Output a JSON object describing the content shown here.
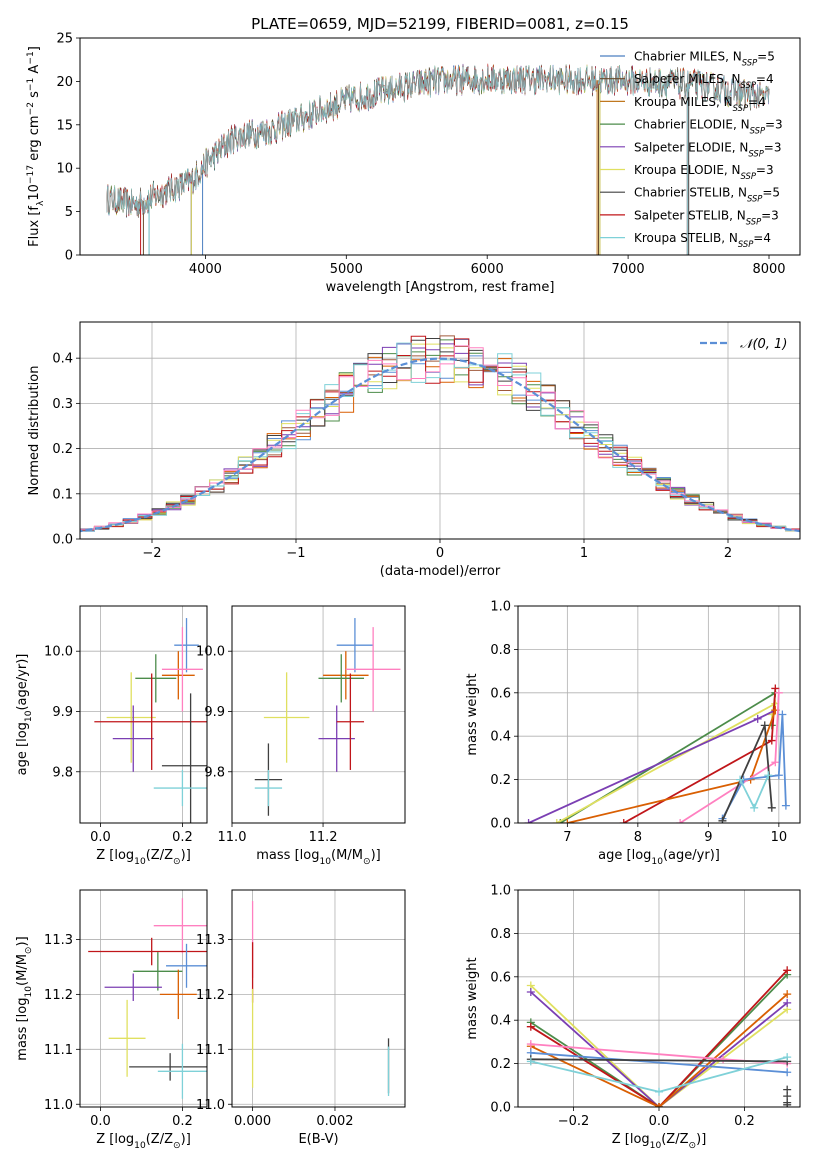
{
  "figure_title": "PLATE=0659, MJD=52199, FIBERID=0081, z=0.15",
  "colors": [
    "#5b8fd6",
    "#d95f02",
    "#a05a3c",
    "#4c8c4a",
    "#7b3fb3",
    "#e0e060",
    "#404040",
    "#c0161a",
    "#7fd1d8",
    "#ff80c0"
  ],
  "chart_data": [
    {
      "id": "spectrum",
      "type": "line",
      "title": "PLATE=0659, MJD=52199, FIBERID=0081, z=0.15",
      "xlabel": "wavelength [Angstrom, rest frame]",
      "ylabel_main": "Flux [f",
      "ylabel_sub": "λ",
      "ylabel_mid": "10",
      "ylabel_exp1": "−17",
      "ylabel_unit": " erg cm",
      "ylabel_exp2": "−2",
      "ylabel_unit2": " s",
      "ylabel_exp3": "−1",
      "ylabel_unit3": " A",
      "ylabel_exp4": "−1",
      "ylabel_end": "]",
      "xlim": [
        3110,
        8220
      ],
      "ylim": [
        0,
        25
      ],
      "xticks": [
        4000,
        5000,
        6000,
        7000,
        8000
      ],
      "yticks": [
        0,
        5,
        10,
        15,
        20,
        25
      ],
      "legend_placement": "top-right",
      "grid": false,
      "continuum_nodes": [
        [
          3300,
          6.5
        ],
        [
          3500,
          5.8
        ],
        [
          3700,
          7.2
        ],
        [
          3900,
          8.5
        ],
        [
          4000,
          10.5
        ],
        [
          4200,
          13.5
        ],
        [
          4500,
          14.5
        ],
        [
          4800,
          16.5
        ],
        [
          5000,
          17.8
        ],
        [
          5300,
          19.0
        ],
        [
          5600,
          20.0
        ],
        [
          6000,
          20.3
        ],
        [
          6500,
          20.2
        ],
        [
          7000,
          20.1
        ],
        [
          7500,
          19.6
        ],
        [
          8000,
          18.0
        ]
      ],
      "series": [
        {
          "name": "Chabrier MILES",
          "nssp": "5",
          "color": "#4c7fc0",
          "cutoffs": [
            3600,
            3980
          ]
        },
        {
          "name": "Salpeter MILES",
          "nssp": "4",
          "color": "#6a4a2a",
          "cutoffs": [
            3560,
            6790
          ]
        },
        {
          "name": "Kroupa MILES",
          "nssp": "4",
          "color": "#c07820",
          "cutoffs": [
            3600,
            6780
          ]
        },
        {
          "name": "Chabrier ELODIE",
          "nssp": "3",
          "color": "#4c8c4a",
          "cutoffs": [
            3900,
            6800
          ]
        },
        {
          "name": "Salpeter ELODIE",
          "nssp": "3",
          "color": "#7b3fb3",
          "cutoffs": [
            3900,
            6800
          ]
        },
        {
          "name": "Kroupa ELODIE",
          "nssp": "3",
          "color": "#e0e060",
          "cutoffs": [
            3900,
            6800
          ]
        },
        {
          "name": "Chabrier STELIB",
          "nssp": "5",
          "color": "#404040",
          "cutoffs": [
            3600,
            7430
          ]
        },
        {
          "name": "Salpeter STELIB",
          "nssp": "3",
          "color": "#c0161a",
          "cutoffs": [
            3540,
            7420
          ]
        },
        {
          "name": "Kroupa STELIB",
          "nssp": "4",
          "color": "#7fd1d8",
          "cutoffs": [
            3600,
            7420
          ]
        }
      ]
    },
    {
      "id": "residuals",
      "type": "histogram",
      "xlabel": "(data-model)/error",
      "ylabel": "Normed distribution",
      "xlim": [
        -2.5,
        2.5
      ],
      "ylim": [
        0,
        0.48
      ],
      "xticks": [
        -2,
        -1,
        0,
        1,
        2
      ],
      "yticks": [
        0.0,
        0.1,
        0.2,
        0.3,
        0.4
      ],
      "grid": true,
      "legend_placement": "top-right",
      "legend_entry": "𝒩(0, 1)",
      "bins": [
        -2.6,
        2.6
      ],
      "bin_width": 0.1,
      "gaussian": {
        "mean": 0,
        "sigma": 1,
        "color": "#5b8fd6"
      }
    },
    {
      "id": "age_vs_Z",
      "type": "scatter",
      "xlabel_pre": "Z [log",
      "xlabel_sub": "10",
      "xlabel_post": "(Z/Z",
      "xlabel_sub2": "⊙",
      "xlabel_end": ")]",
      "ylabel_pre": "age  [log",
      "ylabel_sub": "10",
      "ylabel_post": "(age/yr)]",
      "xlim": [
        -0.05,
        0.26
      ],
      "ylim": [
        9.715,
        10.075
      ],
      "xticks": [
        0.0,
        0.2
      ],
      "yticks": [
        9.8,
        9.9,
        10.0
      ],
      "grid": true,
      "points": [
        {
          "x": 0.21,
          "y": 10.01,
          "xerr": 0.03,
          "yerr": 0.045,
          "color": "#5b8fd6"
        },
        {
          "x": 0.19,
          "y": 9.96,
          "xerr": 0.04,
          "yerr": 0.04,
          "color": "#d95f02"
        },
        {
          "x": 0.2,
          "y": 9.97,
          "xerr": 0.05,
          "yerr": 0.07,
          "color": "#ff80c0"
        },
        {
          "x": 0.135,
          "y": 9.955,
          "xerr": 0.05,
          "yerr": 0.04,
          "color": "#4c8c4a"
        },
        {
          "x": 0.075,
          "y": 9.89,
          "xerr": 0.06,
          "yerr": 0.075,
          "color": "#e0e060"
        },
        {
          "x": 0.08,
          "y": 9.855,
          "xerr": 0.05,
          "yerr": 0.055,
          "color": "#7b3fb3"
        },
        {
          "x": 0.125,
          "y": 9.883,
          "xerr": 0.14,
          "yerr": 0.08,
          "color": "#c0161a"
        },
        {
          "x": 0.22,
          "y": 9.81,
          "xerr": 0.07,
          "yerr": 0.12,
          "color": "#404040"
        },
        {
          "x": 0.2,
          "y": 9.773,
          "xerr": 0.07,
          "yerr": 0.03,
          "color": "#7fd1d8"
        }
      ]
    },
    {
      "id": "age_vs_mass",
      "type": "scatter",
      "xlabel_pre": "mass [log",
      "xlabel_sub": "10",
      "xlabel_post": "(M/M",
      "xlabel_sub2": "⊙",
      "xlabel_end": ")]",
      "xlim": [
        11.0,
        11.38
      ],
      "ylim": [
        9.715,
        10.075
      ],
      "xticks": [
        11.0,
        11.2
      ],
      "yticks": [
        9.8,
        9.9,
        10.0
      ],
      "grid": true,
      "points": [
        {
          "x": 11.27,
          "y": 10.01,
          "xerr": 0.04,
          "yerr": 0.045,
          "color": "#5b8fd6"
        },
        {
          "x": 11.25,
          "y": 9.96,
          "xerr": 0.05,
          "yerr": 0.04,
          "color": "#d95f02"
        },
        {
          "x": 11.31,
          "y": 9.97,
          "xerr": 0.06,
          "yerr": 0.07,
          "color": "#ff80c0"
        },
        {
          "x": 11.24,
          "y": 9.955,
          "xerr": 0.05,
          "yerr": 0.04,
          "color": "#4c8c4a"
        },
        {
          "x": 11.12,
          "y": 9.89,
          "xerr": 0.05,
          "yerr": 0.075,
          "color": "#e0e060"
        },
        {
          "x": 11.23,
          "y": 9.855,
          "xerr": 0.04,
          "yerr": 0.055,
          "color": "#7b3fb3"
        },
        {
          "x": 11.26,
          "y": 9.883,
          "xerr": 0.03,
          "yerr": 0.08,
          "color": "#c0161a"
        },
        {
          "x": 11.08,
          "y": 9.787,
          "xerr": 0.03,
          "yerr": 0.06,
          "color": "#404040"
        },
        {
          "x": 11.08,
          "y": 9.773,
          "xerr": 0.03,
          "yerr": 0.03,
          "color": "#7fd1d8"
        }
      ]
    },
    {
      "id": "massweight_vs_age",
      "type": "line",
      "xlabel_pre": "age  [log",
      "xlabel_sub": "10",
      "xlabel_post": "(age/yr)]",
      "ylabel": "mass weight",
      "xlim": [
        6.3,
        10.3
      ],
      "ylim": [
        0.0,
        1.0
      ],
      "xticks": [
        7,
        8,
        9,
        10
      ],
      "yticks": [
        0.0,
        0.2,
        0.4,
        0.6,
        0.8,
        1.0
      ],
      "grid": true,
      "series": [
        {
          "color": "#4c8c4a",
          "points": [
            [
              6.9,
              0.0
            ],
            [
              9.95,
              0.6
            ],
            [
              9.9,
              0.45
            ]
          ]
        },
        {
          "color": "#e0e060",
          "points": [
            [
              6.85,
              0.0
            ],
            [
              9.95,
              0.55
            ],
            [
              9.9,
              0.5
            ]
          ]
        },
        {
          "color": "#7b3fb3",
          "points": [
            [
              6.45,
              0.0
            ],
            [
              9.7,
              0.48
            ],
            [
              9.95,
              0.52
            ]
          ]
        },
        {
          "color": "#c0161a",
          "points": [
            [
              7.8,
              0.0
            ],
            [
              9.9,
              0.38
            ],
            [
              9.95,
              0.62
            ]
          ]
        },
        {
          "color": "#d95f02",
          "points": [
            [
              7.0,
              0.0
            ],
            [
              9.6,
              0.2
            ],
            [
              9.95,
              0.52
            ]
          ]
        },
        {
          "color": "#ff80c0",
          "points": [
            [
              8.6,
              0.0
            ],
            [
              9.95,
              0.28
            ],
            [
              10.0,
              0.6
            ]
          ]
        },
        {
          "color": "#5b8fd6",
          "points": [
            [
              9.2,
              0.02
            ],
            [
              9.5,
              0.2
            ],
            [
              10.0,
              0.22
            ],
            [
              10.05,
              0.5
            ],
            [
              10.1,
              0.08
            ]
          ]
        },
        {
          "color": "#404040",
          "points": [
            [
              9.2,
              0.01
            ],
            [
              9.8,
              0.45
            ],
            [
              9.9,
              0.07
            ]
          ]
        },
        {
          "color": "#7fd1d8",
          "points": [
            [
              9.45,
              0.2
            ],
            [
              9.65,
              0.07
            ],
            [
              9.85,
              0.22
            ]
          ]
        }
      ]
    },
    {
      "id": "mass_vs_Z",
      "type": "scatter",
      "xlabel_pre": "Z [log",
      "xlabel_sub": "10",
      "xlabel_post": "(Z/Z",
      "xlabel_sub2": "⊙",
      "xlabel_end": ")]",
      "ylabel_pre": "mass [log",
      "ylabel_sub": "10",
      "ylabel_post": "(M/M",
      "ylabel_sub2": "⊙",
      "ylabel_end": ")]",
      "xlim": [
        -0.05,
        0.26
      ],
      "ylim": [
        10.995,
        11.39
      ],
      "xticks": [
        0.0,
        0.2
      ],
      "yticks": [
        11.0,
        11.1,
        11.2,
        11.3
      ],
      "grid": true,
      "points": [
        {
          "x": 0.2,
          "y": 11.325,
          "xerr": 0.07,
          "yerr": 0.05,
          "color": "#ff80c0"
        },
        {
          "x": 0.125,
          "y": 11.278,
          "xerr": 0.155,
          "yerr": 0.025,
          "color": "#c0161a"
        },
        {
          "x": 0.21,
          "y": 11.252,
          "xerr": 0.05,
          "yerr": 0.04,
          "color": "#5b8fd6"
        },
        {
          "x": 0.14,
          "y": 11.242,
          "xerr": 0.06,
          "yerr": 0.035,
          "color": "#4c8c4a"
        },
        {
          "x": 0.08,
          "y": 11.213,
          "xerr": 0.07,
          "yerr": 0.025,
          "color": "#7b3fb3"
        },
        {
          "x": 0.19,
          "y": 11.2,
          "xerr": 0.045,
          "yerr": 0.045,
          "color": "#d95f02"
        },
        {
          "x": 0.065,
          "y": 11.12,
          "xerr": 0.045,
          "yerr": 0.07,
          "color": "#e0e060"
        },
        {
          "x": 0.17,
          "y": 11.068,
          "xerr": 0.1,
          "yerr": 0.025,
          "color": "#404040"
        },
        {
          "x": 0.2,
          "y": 11.06,
          "xerr": 0.06,
          "yerr": 0.05,
          "color": "#7fd1d8"
        }
      ]
    },
    {
      "id": "mass_vs_ebv",
      "type": "scatter",
      "xlabel": "E(B-V)",
      "xlim": [
        -0.0005,
        0.0037
      ],
      "ylim": [
        10.995,
        11.39
      ],
      "xticks": [
        0.0,
        0.002
      ],
      "xtick_labels": [
        "0.000",
        "0.002"
      ],
      "yticks": [
        11.0,
        11.1,
        11.2,
        11.3
      ],
      "grid": true,
      "points": [
        {
          "x": 0.0,
          "y": 11.3,
          "xerr": 0.0,
          "yerr": 0.07,
          "color": "#ff80c0"
        },
        {
          "x": 0.0,
          "y": 11.24,
          "xerr": 0.0,
          "yerr": 0.055,
          "color": "#c0161a"
        },
        {
          "x": 0.0,
          "y": 11.12,
          "xerr": 0.0,
          "yerr": 0.09,
          "color": "#e0e060"
        },
        {
          "x": 0.0033,
          "y": 11.07,
          "xerr": 0.0,
          "yerr": 0.05,
          "color": "#404040"
        },
        {
          "x": 0.0033,
          "y": 11.06,
          "xerr": 0.0,
          "yerr": 0.045,
          "color": "#7fd1d8"
        }
      ]
    },
    {
      "id": "massweight_vs_Z",
      "type": "line",
      "xlabel_pre": "Z [log",
      "xlabel_sub": "10",
      "xlabel_post": "(Z/Z",
      "xlabel_sub2": "⊙",
      "xlabel_end": ")]",
      "ylabel": "mass weight",
      "xlim": [
        -0.33,
        0.33
      ],
      "ylim": [
        0.0,
        1.0
      ],
      "xticks": [
        -0.2,
        0.0,
        0.2
      ],
      "xtick_labels": [
        "−0.2",
        "0.0",
        "0.2"
      ],
      "yticks": [
        0.0,
        0.2,
        0.4,
        0.6,
        0.8,
        1.0
      ],
      "grid": true,
      "series": [
        {
          "color": "#e0e060",
          "points": [
            [
              -0.3,
              0.56
            ],
            [
              0.0,
              0.0
            ],
            [
              0.3,
              0.45
            ]
          ]
        },
        {
          "color": "#7b3fb3",
          "points": [
            [
              -0.3,
              0.53
            ],
            [
              0.0,
              0.0
            ],
            [
              0.3,
              0.48
            ]
          ]
        },
        {
          "color": "#4c8c4a",
          "points": [
            [
              -0.3,
              0.39
            ],
            [
              0.0,
              0.0
            ],
            [
              0.3,
              0.61
            ]
          ]
        },
        {
          "color": "#c0161a",
          "points": [
            [
              -0.3,
              0.37
            ],
            [
              0.0,
              0.0
            ],
            [
              0.3,
              0.63
            ]
          ]
        },
        {
          "color": "#d95f02",
          "points": [
            [
              -0.3,
              0.28
            ],
            [
              0.0,
              0.0
            ],
            [
              0.3,
              0.52
            ]
          ]
        },
        {
          "color": "#ff80c0",
          "points": [
            [
              -0.3,
              0.29
            ],
            [
              0.15,
              0.22
            ],
            [
              0.3,
              0.2
            ]
          ]
        },
        {
          "color": "#5b8fd6",
          "points": [
            [
              -0.3,
              0.25
            ],
            [
              0.3,
              0.16
            ]
          ]
        },
        {
          "color": "#404040",
          "points": [
            [
              -0.3,
              0.22
            ],
            [
              0.3,
              0.21
            ]
          ]
        },
        {
          "color": "#7fd1d8",
          "points": [
            [
              -0.3,
              0.21
            ],
            [
              0.0,
              0.07
            ],
            [
              0.3,
              0.23
            ]
          ]
        }
      ],
      "endpoint_ticks": [
        {
          "x": 0.3,
          "ys": [
            0.08,
            0.05,
            0.02,
            0.01
          ],
          "color": "#404040"
        }
      ]
    }
  ]
}
